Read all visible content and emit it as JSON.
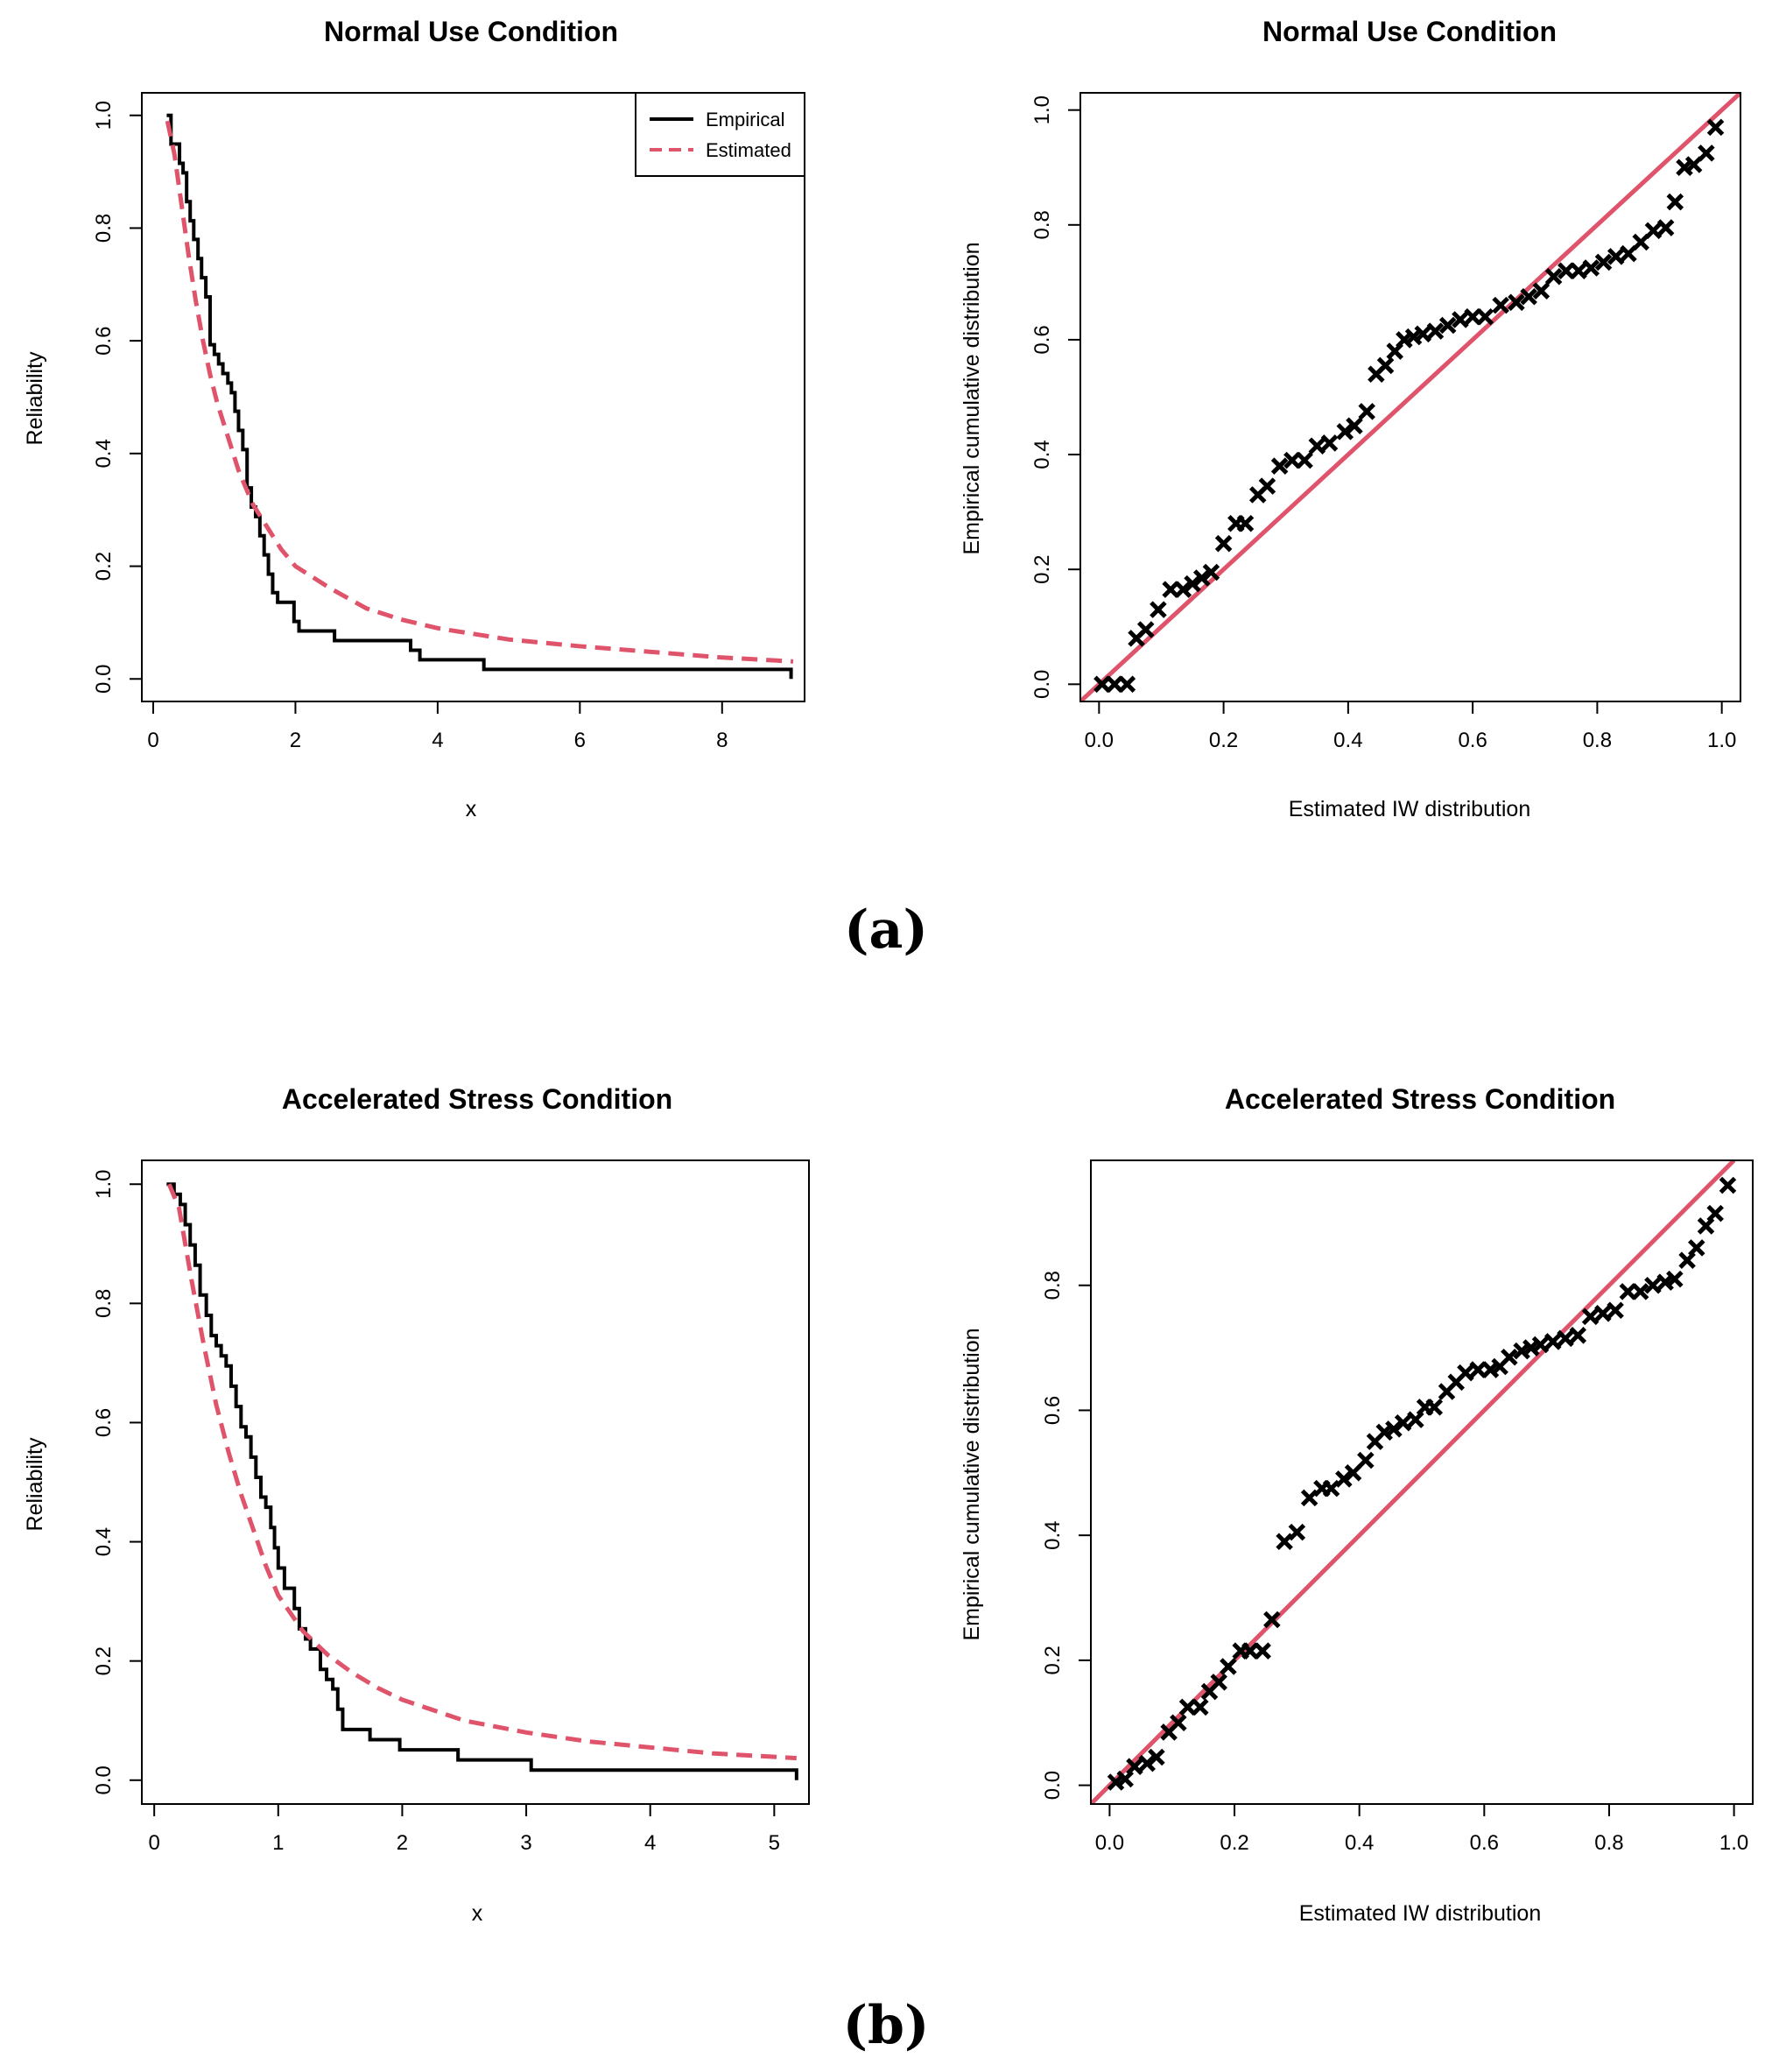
{
  "colors": {
    "empirical": "#000000",
    "estimated": "#DF536B"
  },
  "panel_labels": [
    "(a)",
    "(b)"
  ],
  "chart_data": [
    {
      "id": "a-reliability",
      "type": "line",
      "title": "Normal Use Condition",
      "xlabel": "x",
      "ylabel": "Reliability",
      "xlim": [
        0,
        9
      ],
      "ylim": [
        0,
        1
      ],
      "xticks": [
        "0",
        "2",
        "4",
        "6",
        "8"
      ],
      "yticks": [
        "0.0",
        "0.2",
        "0.4",
        "0.6",
        "0.8",
        "1.0"
      ],
      "legend": {
        "position": "top-right",
        "entries": [
          "Empirical",
          "Estimated"
        ]
      },
      "series": [
        {
          "name": "Empirical",
          "style": "step",
          "color": "#000000",
          "x": [
            0.19,
            0.25,
            0.37,
            0.42,
            0.47,
            0.52,
            0.57,
            0.63,
            0.68,
            0.74,
            0.8,
            0.86,
            0.92,
            0.98,
            1.05,
            1.1,
            1.15,
            1.2,
            1.26,
            1.32,
            1.38,
            1.44,
            1.5,
            1.56,
            1.62,
            1.68,
            1.75,
            1.8,
            1.98,
            2.05,
            2.55,
            3.62,
            3.75,
            4.65,
            8.97
          ],
          "y": [
            1.0,
            0.949,
            0.915,
            0.898,
            0.847,
            0.813,
            0.78,
            0.746,
            0.712,
            0.678,
            0.593,
            0.576,
            0.559,
            0.542,
            0.525,
            0.508,
            0.475,
            0.441,
            0.407,
            0.339,
            0.305,
            0.288,
            0.254,
            0.22,
            0.186,
            0.153,
            0.136,
            0.136,
            0.102,
            0.085,
            0.068,
            0.051,
            0.034,
            0.017,
            0.0
          ]
        },
        {
          "name": "Estimated",
          "style": "dashed",
          "color": "#DF536B",
          "x": [
            0.2,
            0.3,
            0.4,
            0.5,
            0.6,
            0.7,
            0.8,
            0.9,
            1.0,
            1.2,
            1.4,
            1.6,
            1.8,
            2.0,
            2.5,
            3.0,
            3.5,
            4.0,
            4.5,
            5.0,
            6.0,
            7.0,
            8.0,
            9.0
          ],
          "y": [
            0.99,
            0.93,
            0.84,
            0.75,
            0.67,
            0.6,
            0.54,
            0.49,
            0.45,
            0.37,
            0.31,
            0.27,
            0.23,
            0.2,
            0.16,
            0.125,
            0.105,
            0.09,
            0.08,
            0.07,
            0.058,
            0.048,
            0.038,
            0.031
          ]
        }
      ]
    },
    {
      "id": "a-pp",
      "type": "scatter",
      "title": "Normal Use Condition",
      "xlabel": "Estimated IW distribution",
      "ylabel": "Empirical cumulative distribution",
      "xlim": [
        -0.03,
        1.03
      ],
      "ylim": [
        -0.03,
        1.03
      ],
      "xticks": [
        "0.0",
        "0.2",
        "0.4",
        "0.6",
        "0.8",
        "1.0"
      ],
      "yticks": [
        "0.0",
        "0.2",
        "0.4",
        "0.6",
        "0.8",
        "1.0"
      ],
      "reference_line": {
        "from": [
          -0.03,
          -0.03
        ],
        "to": [
          1.03,
          1.03
        ],
        "color": "#DF536B"
      },
      "series": [
        {
          "name": "points",
          "marker": "x",
          "color": "#000000",
          "x": [
            0.005,
            0.025,
            0.045,
            0.06,
            0.075,
            0.095,
            0.115,
            0.135,
            0.15,
            0.165,
            0.18,
            0.2,
            0.22,
            0.235,
            0.255,
            0.27,
            0.29,
            0.31,
            0.33,
            0.35,
            0.37,
            0.395,
            0.41,
            0.43,
            0.445,
            0.46,
            0.475,
            0.49,
            0.505,
            0.52,
            0.54,
            0.56,
            0.58,
            0.6,
            0.62,
            0.645,
            0.67,
            0.69,
            0.71,
            0.73,
            0.75,
            0.77,
            0.79,
            0.81,
            0.83,
            0.85,
            0.87,
            0.89,
            0.91,
            0.925,
            0.94,
            0.955,
            0.975,
            0.99
          ],
          "y": [
            0.0,
            0.0,
            0.0,
            0.08,
            0.095,
            0.13,
            0.165,
            0.165,
            0.175,
            0.185,
            0.195,
            0.245,
            0.28,
            0.28,
            0.33,
            0.345,
            0.38,
            0.39,
            0.39,
            0.415,
            0.42,
            0.44,
            0.45,
            0.475,
            0.54,
            0.555,
            0.58,
            0.6,
            0.605,
            0.61,
            0.615,
            0.625,
            0.635,
            0.64,
            0.64,
            0.66,
            0.665,
            0.675,
            0.685,
            0.71,
            0.72,
            0.72,
            0.725,
            0.735,
            0.745,
            0.75,
            0.77,
            0.79,
            0.795,
            0.84,
            0.9,
            0.905,
            0.925,
            0.97
          ]
        }
      ]
    },
    {
      "id": "b-reliability",
      "type": "line",
      "title": "Accelerated Stress Condition",
      "xlabel": "x",
      "ylabel": "Reliability",
      "xlim": [
        0,
        5.2
      ],
      "ylim": [
        0,
        1
      ],
      "xticks": [
        "0",
        "1",
        "2",
        "3",
        "4",
        "5"
      ],
      "yticks": [
        "0.0",
        "0.2",
        "0.4",
        "0.6",
        "0.8",
        "1.0"
      ],
      "series": [
        {
          "name": "Empirical",
          "style": "step",
          "color": "#000000",
          "x": [
            0.1,
            0.16,
            0.21,
            0.25,
            0.29,
            0.33,
            0.37,
            0.42,
            0.46,
            0.5,
            0.54,
            0.58,
            0.62,
            0.66,
            0.7,
            0.74,
            0.78,
            0.82,
            0.86,
            0.9,
            0.94,
            0.97,
            1.0,
            1.05,
            1.13,
            1.17,
            1.22,
            1.26,
            1.34,
            1.39,
            1.44,
            1.48,
            1.52,
            1.74,
            1.98,
            2.45,
            3.04,
            5.18
          ],
          "y": [
            1.0,
            0.983,
            0.966,
            0.932,
            0.898,
            0.864,
            0.814,
            0.78,
            0.746,
            0.729,
            0.712,
            0.695,
            0.661,
            0.627,
            0.593,
            0.576,
            0.542,
            0.508,
            0.475,
            0.458,
            0.424,
            0.39,
            0.356,
            0.322,
            0.288,
            0.254,
            0.237,
            0.22,
            0.186,
            0.169,
            0.153,
            0.119,
            0.085,
            0.068,
            0.051,
            0.034,
            0.017,
            0.0
          ]
        },
        {
          "name": "Estimated",
          "style": "dashed",
          "color": "#DF536B",
          "x": [
            0.12,
            0.2,
            0.3,
            0.4,
            0.5,
            0.6,
            0.7,
            0.8,
            0.9,
            1.0,
            1.1,
            1.2,
            1.4,
            1.6,
            1.8,
            2.0,
            2.5,
            3.0,
            3.5,
            4.0,
            4.5,
            5.18
          ],
          "y": [
            1.0,
            0.96,
            0.84,
            0.73,
            0.63,
            0.55,
            0.48,
            0.42,
            0.36,
            0.31,
            0.28,
            0.25,
            0.21,
            0.18,
            0.155,
            0.135,
            0.1,
            0.08,
            0.065,
            0.055,
            0.045,
            0.037
          ]
        }
      ]
    },
    {
      "id": "b-pp",
      "type": "scatter",
      "title": "Accelerated Stress Condition",
      "xlabel": "Estimated IW distribution",
      "ylabel": "Empirical cumulative distribution",
      "xlim": [
        -0.03,
        1.03
      ],
      "ylim": [
        -0.03,
        1.0
      ],
      "xticks": [
        "0.0",
        "0.2",
        "0.4",
        "0.6",
        "0.8",
        "1.0"
      ],
      "yticks": [
        "0.0",
        "0.2",
        "0.4",
        "0.6",
        "0.8"
      ],
      "reference_line": {
        "from": [
          -0.03,
          -0.03
        ],
        "to": [
          1.0,
          1.0
        ],
        "color": "#DF536B"
      },
      "series": [
        {
          "name": "points",
          "marker": "x",
          "color": "#000000",
          "x": [
            0.01,
            0.025,
            0.04,
            0.06,
            0.075,
            0.095,
            0.11,
            0.125,
            0.145,
            0.16,
            0.175,
            0.19,
            0.21,
            0.225,
            0.245,
            0.26,
            0.28,
            0.3,
            0.32,
            0.34,
            0.355,
            0.375,
            0.39,
            0.41,
            0.425,
            0.44,
            0.455,
            0.47,
            0.49,
            0.505,
            0.52,
            0.54,
            0.555,
            0.57,
            0.59,
            0.61,
            0.625,
            0.64,
            0.66,
            0.675,
            0.69,
            0.71,
            0.73,
            0.75,
            0.77,
            0.79,
            0.81,
            0.83,
            0.85,
            0.87,
            0.89,
            0.905,
            0.925,
            0.94,
            0.955,
            0.97,
            0.99
          ],
          "y": [
            0.005,
            0.01,
            0.03,
            0.035,
            0.045,
            0.085,
            0.1,
            0.125,
            0.125,
            0.15,
            0.165,
            0.19,
            0.215,
            0.215,
            0.215,
            0.265,
            0.39,
            0.405,
            0.46,
            0.475,
            0.475,
            0.49,
            0.5,
            0.52,
            0.55,
            0.565,
            0.57,
            0.58,
            0.585,
            0.605,
            0.605,
            0.63,
            0.645,
            0.66,
            0.665,
            0.665,
            0.67,
            0.685,
            0.695,
            0.7,
            0.705,
            0.71,
            0.715,
            0.72,
            0.75,
            0.755,
            0.76,
            0.79,
            0.79,
            0.8,
            0.805,
            0.81,
            0.84,
            0.86,
            0.895,
            0.915,
            0.96
          ]
        }
      ]
    }
  ]
}
